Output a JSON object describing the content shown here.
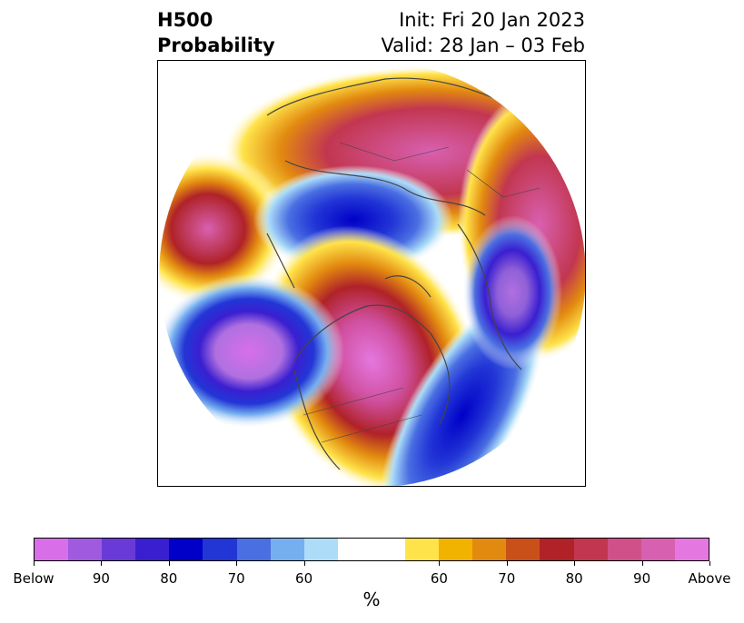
{
  "title": {
    "left_line1": "H500",
    "left_line2": "Probability",
    "right_line1": "Init: Fri 20 Jan 2023",
    "right_line2": "Valid: 28 Jan – 03 Feb"
  },
  "map": {
    "projection": "north-polar-stereographic",
    "field": "500 hPa height probability (below / above)",
    "features": [
      {
        "name": "above-anomaly-north-pacific",
        "level": "Above",
        "color": "#d860d0"
      },
      {
        "name": "below-anomaly-west-of-canada",
        "level": "Below",
        "color": "#d070e0"
      },
      {
        "name": "above-anomaly-central-canada-arctic",
        "level": "Above",
        "color": "#e070e0"
      },
      {
        "name": "below-anomaly-siberia",
        "level": "Below",
        "color": "#0000c8"
      },
      {
        "name": "below-anomaly-north-atlantic",
        "level": "Below",
        "color": "#0000c8"
      },
      {
        "name": "below-anomaly-europe",
        "level": "Below",
        "color": "#b070e0"
      },
      {
        "name": "above-anomaly-asia-ring",
        "level": "Above",
        "color": "#d860b0"
      }
    ]
  },
  "colorbar": {
    "unit_label": "%",
    "tick_labels": [
      "Below",
      "90",
      "80",
      "70",
      "60",
      "60",
      "70",
      "80",
      "90",
      "Above"
    ],
    "colors": [
      "#d86fe8",
      "#9f5ae0",
      "#6a3ad8",
      "#3a1fd0",
      "#0000c8",
      "#2236d6",
      "#4a6fe2",
      "#76aff0",
      "#acdcf8",
      "#ffffff",
      "#ffffff",
      "#ffe34a",
      "#f2b200",
      "#e28a10",
      "#c95018",
      "#b02228",
      "#c23650",
      "#d0508a",
      "#d860b0",
      "#e478e0"
    ]
  }
}
